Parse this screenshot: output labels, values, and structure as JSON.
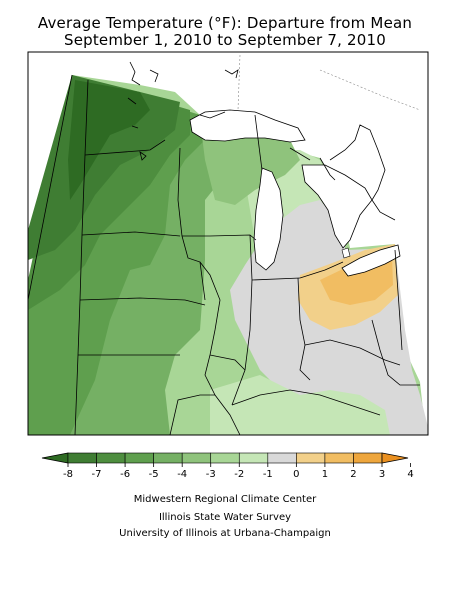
{
  "title": {
    "line1": "Average Temperature (°F): Departure from Mean",
    "line2": "September 1, 2010 to September 7, 2010"
  },
  "legend": {
    "labels": [
      "-8",
      "-7",
      "-6",
      "-5",
      "-4",
      "-3",
      "-2",
      "-1",
      "0",
      "1",
      "2",
      "3",
      "4"
    ],
    "colors": [
      "#2e6b23",
      "#3f7d33",
      "#4e8e3f",
      "#5f9f4e",
      "#75b064",
      "#8fc37c",
      "#a8d696",
      "#c5e6b6",
      "#d9d9d9",
      "#f2d08a",
      "#f1bd62",
      "#eea63d",
      "#ea9020"
    ]
  },
  "credits": {
    "line1": "Midwestern Regional Climate Center",
    "line2": "Illinois State Water Survey",
    "line3": "University of Illinois at Urbana-Champaign"
  }
}
